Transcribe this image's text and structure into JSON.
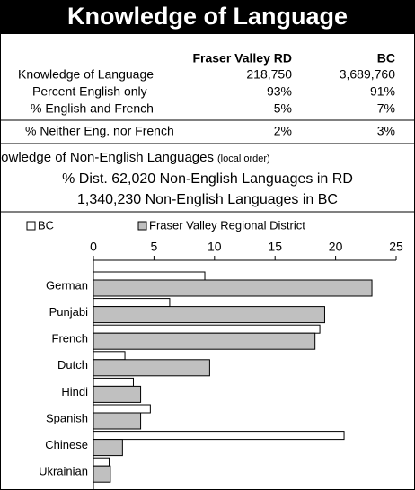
{
  "header": {
    "title": "Knowledge of Language"
  },
  "table": {
    "columns": [
      "Fraser Valley RD",
      "BC"
    ],
    "rows": [
      [
        "Knowledge of Language",
        "218,750",
        "3,689,760"
      ],
      [
        "Percent English only",
        "93%",
        "91%"
      ],
      [
        "% English and French",
        "5%",
        "7%"
      ],
      [
        "% Neither Eng. nor French",
        "2%",
        "3%"
      ]
    ]
  },
  "info": {
    "heading": "Knowledge of Non-English Languages",
    "heading_note": "(local order)",
    "line1": "% Dist. 62,020 Non-English Languages in RD",
    "line2": "1,340,230 Non-English Languages in BC"
  },
  "chart_data": {
    "type": "hbar",
    "categories": [
      "German",
      "Punjabi",
      "French",
      "Dutch",
      "Hindi",
      "Spanish",
      "Chinese",
      "Ukrainian"
    ],
    "series": [
      {
        "name": "BC",
        "color": "#ffffff",
        "values": [
          9.2,
          6.3,
          18.7,
          2.6,
          3.3,
          4.7,
          20.7,
          1.3
        ]
      },
      {
        "name": "Fraser Valley Regional District",
        "color": "#c0c0c0",
        "values": [
          23.0,
          19.1,
          18.3,
          9.6,
          3.9,
          3.9,
          2.4,
          1.4
        ]
      }
    ],
    "xlim": [
      0,
      25
    ],
    "xticks": [
      0,
      5,
      10,
      15,
      20,
      25
    ],
    "legend": "top"
  }
}
